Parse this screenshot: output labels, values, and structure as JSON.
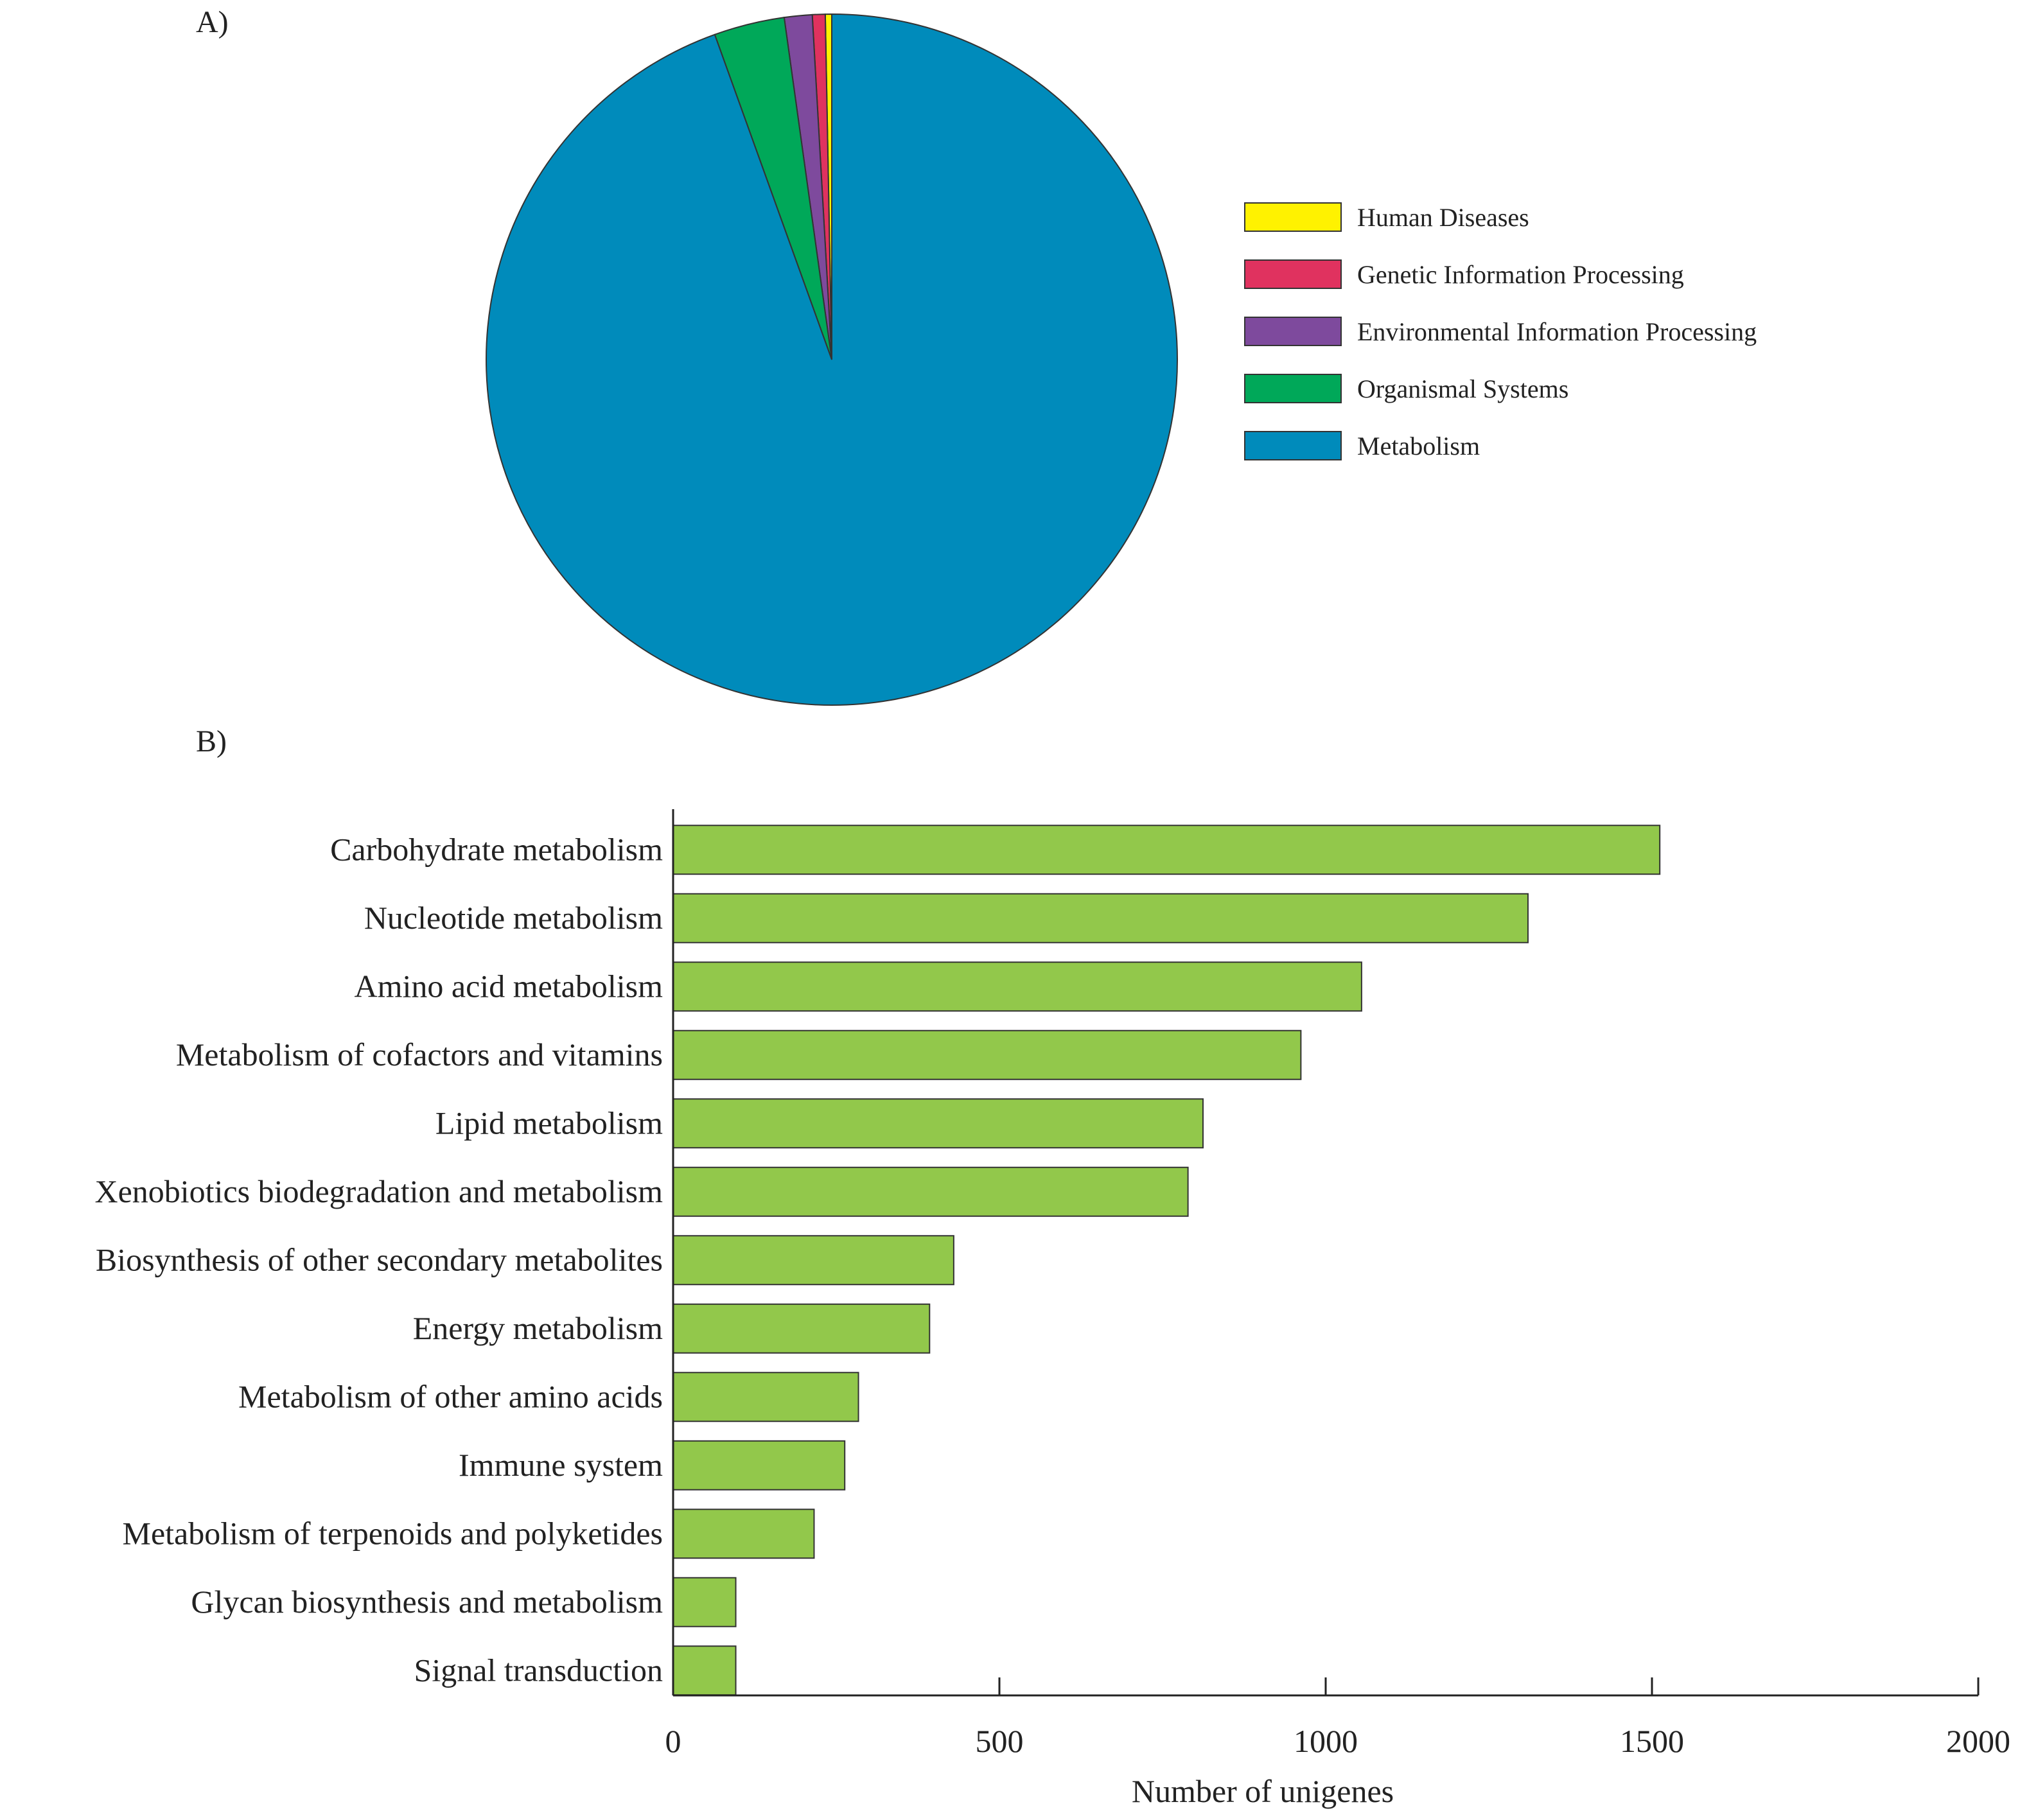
{
  "chart_data": [
    {
      "panel_label": "A)",
      "type": "pie",
      "start": "12 o'clock, clockwise",
      "slices": [
        {
          "label": "Human Diseases",
          "value": 0.3,
          "color": "#FFF200"
        },
        {
          "label": "Genetic Information Processing",
          "value": 0.6,
          "color": "#E0325F"
        },
        {
          "label": "Environmental Information Processing",
          "value": 1.3,
          "color": "#7E4A9D"
        },
        {
          "label": "Organismal Systems",
          "value": 3.3,
          "color": "#00A859"
        },
        {
          "label": "Metabolism",
          "value": 94.5,
          "color": "#008BBB"
        }
      ],
      "legend_position": "right"
    },
    {
      "panel_label": "B)",
      "type": "bar",
      "orientation": "horizontal",
      "bar_color": "#92C84B",
      "categories": [
        "Carbohydrate metabolism",
        "Nucleotide metabolism",
        "Amino acid metabolism",
        "Metabolism of cofactors and vitamins",
        "Lipid metabolism",
        "Xenobiotics biodegradation and metabolism",
        "Biosynthesis of other secondary metabolites",
        "Energy metabolism",
        "Metabolism of other amino acids",
        "Immune system",
        "Metabolism of terpenoids and polyketides",
        "Glycan biosynthesis and metabolism",
        "Signal transduction"
      ],
      "values": [
        1512,
        1310,
        1055,
        962,
        812,
        789,
        430,
        393,
        284,
        263,
        216,
        96,
        96
      ],
      "xlabel": "Number of unigenes",
      "xlim": [
        0,
        2000
      ],
      "xticks": [
        "0",
        "500",
        "1000",
        "1500",
        "2000"
      ],
      "grid": false
    }
  ]
}
